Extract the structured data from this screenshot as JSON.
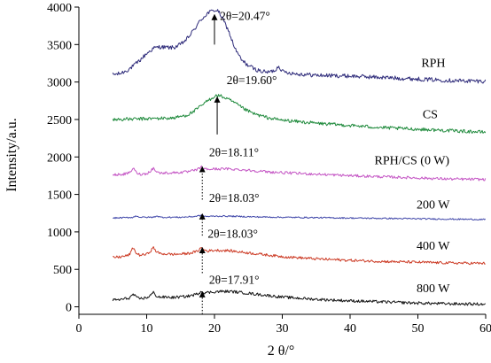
{
  "chart_data": {
    "type": "line",
    "xlabel": "2 θ/°",
    "ylabel": "Intensity/a.u.",
    "xlim": [
      0,
      60
    ],
    "ylim": [
      -100,
      4000
    ],
    "x_ticks": [
      0,
      10,
      20,
      30,
      40,
      50,
      60
    ],
    "y_ticks": [
      0,
      500,
      1000,
      1500,
      2000,
      2500,
      3000,
      3500,
      4000
    ],
    "grid": false,
    "legend": "inline-right",
    "series": [
      {
        "name": "RPH",
        "color": "#2e2b7a",
        "x": [
          5,
          6,
          7,
          8,
          9,
          10,
          11,
          12,
          13,
          14,
          15,
          16,
          17,
          18,
          19,
          20,
          20.5,
          21,
          22,
          23,
          24,
          25,
          26,
          27,
          28,
          29,
          29.5,
          30,
          32,
          35,
          40,
          45,
          50,
          55,
          60
        ],
        "y": [
          3100,
          3110,
          3150,
          3210,
          3290,
          3380,
          3450,
          3470,
          3460,
          3460,
          3500,
          3580,
          3700,
          3830,
          3920,
          3960,
          3950,
          3880,
          3700,
          3450,
          3290,
          3220,
          3170,
          3140,
          3130,
          3160,
          3220,
          3140,
          3110,
          3090,
          3080,
          3060,
          3040,
          3020,
          3010
        ]
      },
      {
        "name": "CS",
        "color": "#1f8a3c",
        "x": [
          5,
          8,
          10,
          12,
          14,
          16,
          17,
          18,
          19,
          20,
          20.5,
          21,
          22,
          23,
          24,
          25,
          26,
          28,
          30,
          35,
          40,
          45,
          50,
          55,
          60
        ],
        "y": [
          2500,
          2505,
          2510,
          2515,
          2520,
          2560,
          2610,
          2680,
          2750,
          2810,
          2820,
          2810,
          2770,
          2720,
          2660,
          2610,
          2570,
          2520,
          2490,
          2450,
          2420,
          2390,
          2370,
          2350,
          2330
        ]
      },
      {
        "name": "RPH/CS (0 W)",
        "color": "#c455c4",
        "x": [
          5,
          6,
          7,
          7.5,
          8,
          8.5,
          9,
          10,
          10.5,
          11,
          11.5,
          12,
          14,
          16,
          17,
          17.5,
          18,
          18.5,
          19,
          20,
          22,
          24,
          26,
          28,
          30,
          35,
          40,
          45,
          50,
          55,
          60
        ],
        "y": [
          1760,
          1765,
          1775,
          1790,
          1850,
          1790,
          1770,
          1775,
          1810,
          1850,
          1800,
          1785,
          1790,
          1800,
          1820,
          1830,
          1870,
          1840,
          1835,
          1840,
          1840,
          1830,
          1815,
          1800,
          1790,
          1770,
          1750,
          1735,
          1720,
          1705,
          1700
        ]
      },
      {
        "name": "200 W",
        "color": "#3e45a8",
        "x": [
          5,
          7,
          8,
          8.5,
          9,
          11,
          11.5,
          12,
          15,
          17,
          18,
          18.5,
          19,
          20,
          22,
          24,
          26,
          30,
          35,
          40,
          45,
          50,
          55,
          60
        ],
        "y": [
          1185,
          1190,
          1195,
          1215,
          1195,
          1195,
          1215,
          1195,
          1195,
          1205,
          1220,
          1210,
          1205,
          1210,
          1210,
          1205,
          1200,
          1195,
          1190,
          1185,
          1180,
          1175,
          1170,
          1165
        ]
      },
      {
        "name": "400 W",
        "color": "#cc3b25",
        "x": [
          5,
          6,
          7,
          7.5,
          8,
          8.5,
          9,
          10,
          10.5,
          11,
          11.5,
          12,
          14,
          16,
          17,
          17.5,
          18,
          18.5,
          19,
          20,
          22,
          24,
          26,
          28,
          30,
          35,
          40,
          45,
          50,
          55,
          60
        ],
        "y": [
          660,
          665,
          680,
          700,
          790,
          710,
          690,
          700,
          740,
          790,
          730,
          710,
          700,
          710,
          730,
          740,
          790,
          760,
          745,
          755,
          750,
          730,
          710,
          690,
          670,
          640,
          620,
          605,
          595,
          585,
          580
        ]
      },
      {
        "name": "800 W",
        "color": "#111111",
        "x": [
          5,
          6,
          7,
          7.5,
          8,
          8.5,
          9,
          10,
          10.5,
          11,
          11.5,
          12,
          14,
          16,
          17,
          17.5,
          18,
          18.5,
          19,
          20,
          21,
          22,
          23,
          24,
          26,
          28,
          30,
          35,
          40,
          45,
          50,
          55,
          60
        ],
        "y": [
          90,
          95,
          110,
          120,
          170,
          120,
          110,
          120,
          150,
          190,
          140,
          130,
          125,
          140,
          160,
          170,
          210,
          190,
          190,
          200,
          205,
          205,
          200,
          190,
          170,
          150,
          130,
          100,
          80,
          65,
          50,
          40,
          35
        ]
      }
    ],
    "annotations": [
      {
        "text": "2θ=20.47°",
        "x": 20.0,
        "y_tip": 3900,
        "y_tail": 3500,
        "text_x": 20.8,
        "text_y": 3830,
        "arrow_style": "solid"
      },
      {
        "text": "2θ=19.60°",
        "x": 20.4,
        "y_tip": 2800,
        "y_tail": 2300,
        "text_x": 21.8,
        "text_y": 2970,
        "arrow_style": "solid"
      },
      {
        "text": "2θ=18.11°",
        "x": 18.2,
        "y_tip": 1870,
        "y_tail": 1430,
        "text_x": 19.2,
        "text_y": 2010,
        "arrow_style": "dotted"
      },
      {
        "text": "2θ=18.03°",
        "x": 18.2,
        "y_tip": 1240,
        "y_tail": 950,
        "text_x": 19.2,
        "text_y": 1400,
        "arrow_style": "dotted"
      },
      {
        "text": "2θ=18.03°",
        "x": 18.2,
        "y_tip": 790,
        "y_tail": 450,
        "text_x": 19.0,
        "text_y": 920,
        "arrow_style": "dotted"
      },
      {
        "text": "2θ=17.91°",
        "x": 18.2,
        "y_tip": 200,
        "y_tail": -100,
        "text_x": 19.2,
        "text_y": 310,
        "arrow_style": "dotted"
      }
    ],
    "series_labels": [
      {
        "text": "RPH",
        "x": 50.5,
        "y": 3200
      },
      {
        "text": "CS",
        "x": 50.7,
        "y": 2520
      },
      {
        "text": "RPH/CS (0 W)",
        "x": 43.6,
        "y": 1900
      },
      {
        "text": "200 W",
        "x": 49.8,
        "y": 1310
      },
      {
        "text": "400 W",
        "x": 49.8,
        "y": 760
      },
      {
        "text": "800 W",
        "x": 49.8,
        "y": 195
      }
    ]
  }
}
